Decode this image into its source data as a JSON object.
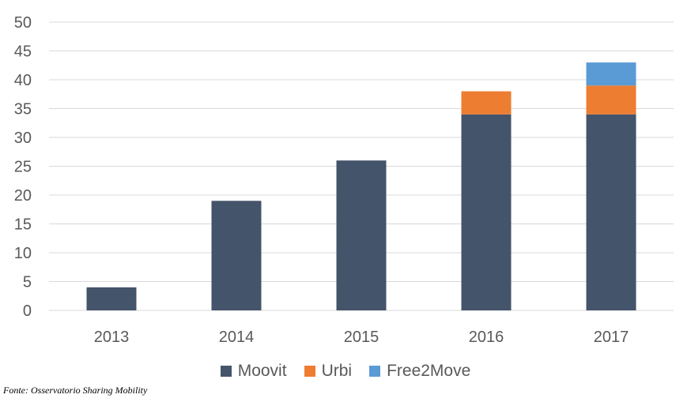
{
  "chart_data": {
    "type": "bar",
    "stacked": true,
    "categories": [
      "2013",
      "2014",
      "2015",
      "2016",
      "2017"
    ],
    "series": [
      {
        "name": "Moovit",
        "color": "#44546a",
        "values": [
          4,
          19,
          26,
          34,
          34
        ]
      },
      {
        "name": "Urbi",
        "color": "#ed7d31",
        "values": [
          0,
          0,
          0,
          4,
          5
        ]
      },
      {
        "name": "Free2Move",
        "color": "#5b9bd5",
        "values": [
          0,
          0,
          0,
          0,
          4
        ]
      }
    ],
    "ylim": [
      0,
      50
    ],
    "yticks": [
      0,
      5,
      10,
      15,
      20,
      25,
      30,
      35,
      40,
      45,
      50
    ],
    "grid": true,
    "legend_position": "bottom"
  },
  "source_note": "Fonte: Osservatorio Sharing Mobility"
}
